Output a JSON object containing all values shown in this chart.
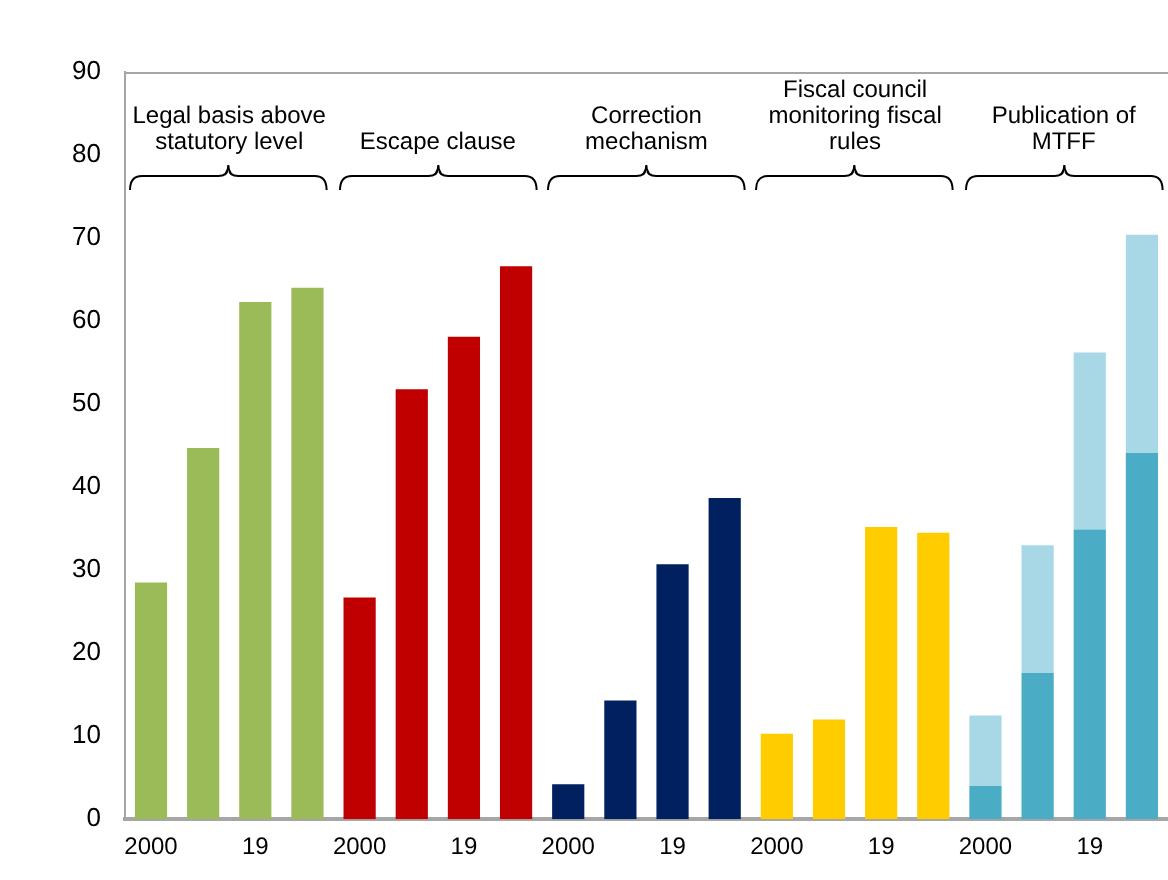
{
  "chart_data": {
    "type": "bar",
    "stacked": true,
    "categories": [
      "2000",
      null,
      "19",
      null,
      "2000",
      null,
      "19",
      null,
      "2000",
      null,
      "19",
      null,
      "2000",
      null,
      "19",
      null,
      "2000",
      null,
      "19",
      null
    ],
    "series": [
      {
        "color": "#9bbb59",
        "values": [
          28.5,
          44.7,
          62.3,
          64.0,
          null,
          null,
          null,
          null,
          null,
          null,
          null,
          null,
          null,
          null,
          null,
          null,
          null,
          null,
          null,
          null
        ]
      },
      {
        "color": "#c00000",
        "values": [
          null,
          null,
          null,
          null,
          26.7,
          51.8,
          58.1,
          66.6,
          null,
          null,
          null,
          null,
          null,
          null,
          null,
          null,
          null,
          null,
          null,
          null
        ]
      },
      {
        "color": "#002060",
        "values": [
          null,
          null,
          null,
          null,
          null,
          null,
          null,
          null,
          4.2,
          14.3,
          30.7,
          38.7,
          null,
          null,
          null,
          null,
          null,
          null,
          null,
          null
        ]
      },
      {
        "color": "#ffcc00",
        "values": [
          null,
          null,
          null,
          null,
          null,
          null,
          null,
          null,
          null,
          null,
          null,
          null,
          10.3,
          12.0,
          35.2,
          34.5,
          null,
          null,
          null,
          null
        ]
      },
      {
        "color": "#4bacc6",
        "values": [
          null,
          null,
          null,
          null,
          null,
          null,
          null,
          null,
          null,
          null,
          null,
          null,
          null,
          null,
          null,
          null,
          4.0,
          17.6,
          34.9,
          44.1
        ]
      },
      {
        "color": "#a8d8e6",
        "values": [
          null,
          null,
          null,
          null,
          null,
          null,
          null,
          null,
          null,
          null,
          null,
          null,
          null,
          null,
          null,
          null,
          8.5,
          15.4,
          21.3,
          26.3
        ]
      }
    ],
    "ylim": [
      0,
      90
    ],
    "yticks": [
      0,
      10,
      20,
      30,
      40,
      50,
      60,
      70,
      80,
      90
    ],
    "grid": false,
    "legend": false,
    "annotations": [
      "Legal basis above statutory level",
      "Escape clause",
      "Correction mechanism",
      "Fiscal council monitoring fiscal rules",
      "Publication of MTFF"
    ]
  }
}
